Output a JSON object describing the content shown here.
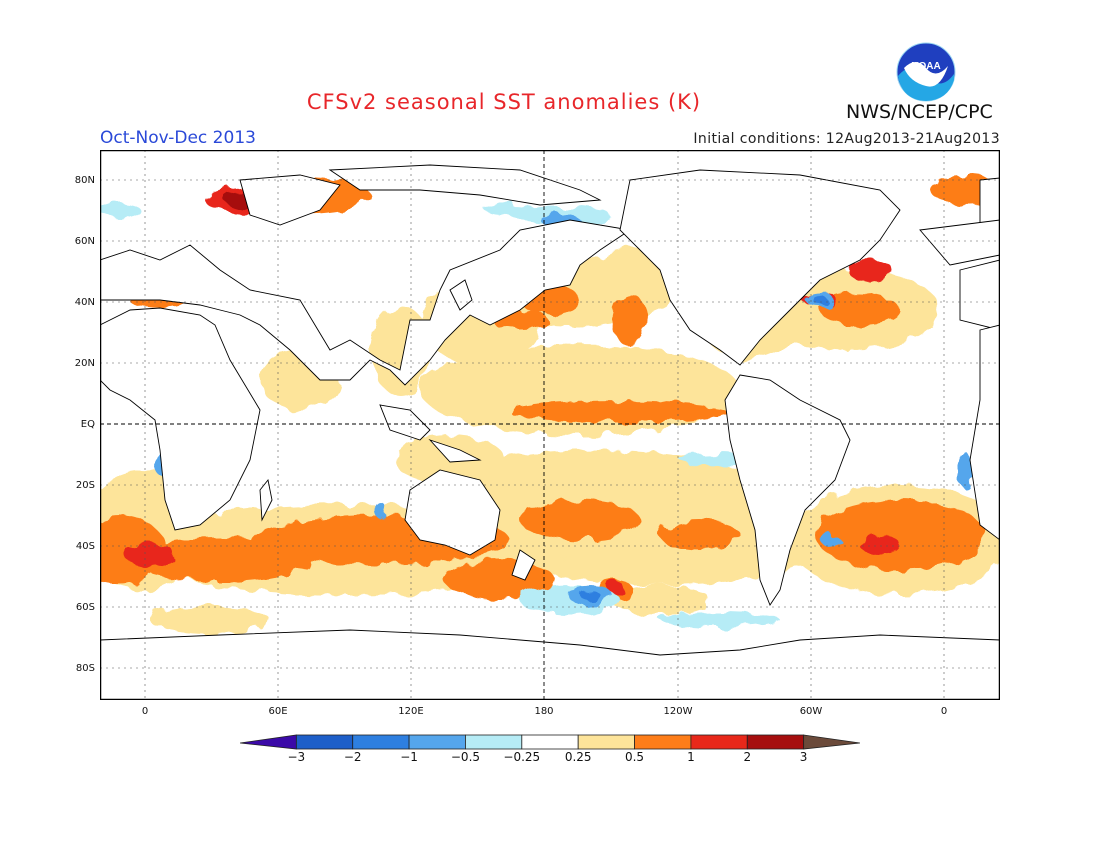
{
  "title": "CFSv2 seasonal SST anomalies (K)",
  "organization": "NWS/NCEP/CPC",
  "logo_text": "NOAA",
  "season": "Oct-Nov-Dec 2013",
  "initial_conditions": "Initial conditions: 12Aug2013-21Aug2013",
  "lat_labels": [
    "80N",
    "60N",
    "40N",
    "20N",
    "EQ",
    "20S",
    "40S",
    "60S",
    "80S"
  ],
  "lon_labels": [
    "0",
    "60E",
    "120E",
    "180",
    "120W",
    "60W",
    "0"
  ],
  "colorbar": {
    "labels": [
      "−3",
      "−2",
      "−1",
      "−0.5",
      "−0.25",
      "0.25",
      "0.5",
      "1",
      "2",
      "3"
    ],
    "colors": [
      "#3b0aa8",
      "#1d5fc9",
      "#2e7fe0",
      "#55a6ec",
      "#b6ecf6",
      "#ffffff",
      "#fde49a",
      "#fd7d19",
      "#e8281a",
      "#a60e0e",
      "#6b4a3a"
    ]
  },
  "colors": {
    "title": "#e8262a",
    "season": "#2a49d8",
    "land": "#ffffff",
    "coast": "#000000"
  }
}
